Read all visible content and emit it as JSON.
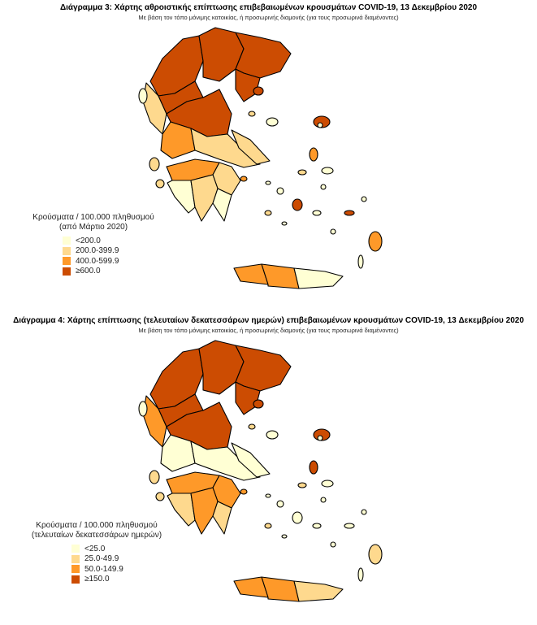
{
  "colors": {
    "c0": "#ffffd4",
    "c1": "#fed98e",
    "c2": "#fe9929",
    "c3": "#cc4c02"
  },
  "map1": {
    "title": "Διάγραμμα 3: Χάρτης αθροιστικής επίπτωσης επιβεβαιωμένων κρουσμάτων COVID-19, 13 Δεκεμβρίου 2020",
    "subtitle": "Με βάση τον τόπο μόνιμης κατοικίας, ή προσωρινής διαμονής (για τους προσωρινά διαμένοντες)",
    "legend_title": "Κρούσματα / 100.000 πληθυσμού",
    "legend_subtitle": "(από Μάρτιο 2020)",
    "legend": [
      {
        "label": "<200.0",
        "color": "#ffffd4"
      },
      {
        "label": "200.0-399.9",
        "color": "#fed98e"
      },
      {
        "label": "400.0-599.9",
        "color": "#fe9929"
      },
      {
        "label": "≥600.0",
        "color": "#cc4c02"
      }
    ]
  },
  "map2": {
    "title": "Διάγραμμα 4: Χάρτης επίπτωσης (τελευταίων δεκατεσσάρων ημερών) επιβεβαιωμένων κρουσμάτων COVID-19, 13 Δεκεμβρίου 2020",
    "subtitle": "Με βάση τον τόπο μόνιμης κατοικίας, ή προσωρινής διαμονής (για τους προσωρινά διαμένοντες)",
    "legend_title": "Κρούσματα / 100.000 πληθυσμού",
    "legend_subtitle": "(τελευταίων δεκατεσσάρων ημερών)",
    "legend": [
      {
        "label": "<25.0",
        "color": "#ffffd4"
      },
      {
        "label": "25.0-49.9",
        "color": "#fed98e"
      },
      {
        "label": "50.0-149.9",
        "color": "#fe9929"
      },
      {
        "label": "≥150.0",
        "color": "#cc4c02"
      }
    ]
  }
}
